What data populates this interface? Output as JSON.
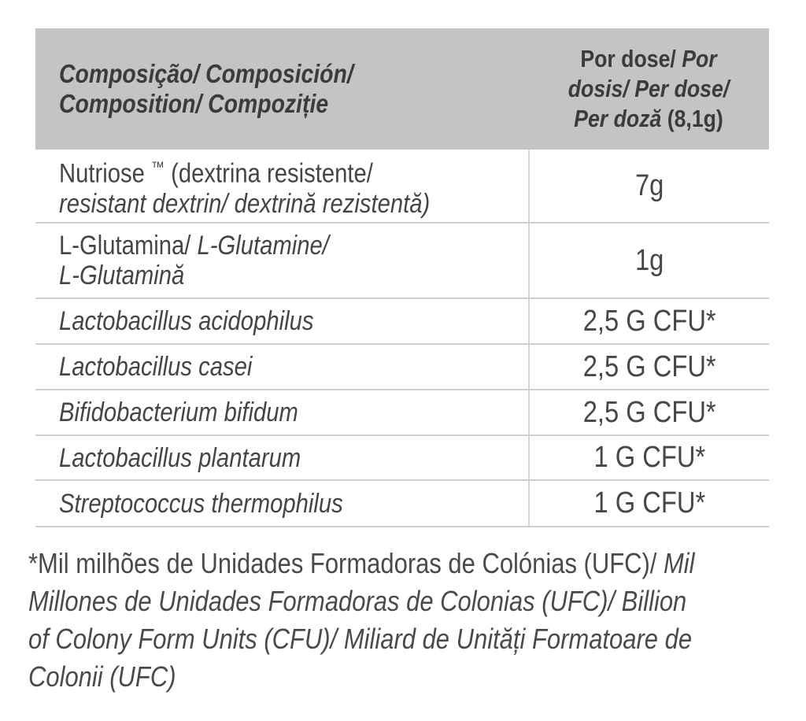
{
  "colors": {
    "page_bg": "#ffffff",
    "header_bg": "#c4c4c4",
    "header_text": "#3b3b3b",
    "body_text": "#454545",
    "row_separator": "#cfcfcf",
    "column_divider": "#d4d4d4"
  },
  "table": {
    "header": {
      "composition_lines": [
        [
          {
            "t": "Composição/ Composición/",
            "i": true
          }
        ],
        [
          {
            "t": "Composition/ Compoziție",
            "i": true
          }
        ]
      ],
      "per_dose_lines": [
        [
          {
            "t": "Por dose/ ",
            "i": false
          },
          {
            "t": "Por",
            "i": true
          }
        ],
        [
          {
            "t": "dosis/ Per dose/",
            "i": true
          }
        ],
        [
          {
            "t": "Per doză",
            "i": true
          },
          {
            "t": " (8,1g)",
            "i": false
          }
        ]
      ]
    },
    "rows": [
      {
        "name_lines": [
          [
            {
              "t": "Nutriose ",
              "i": false
            },
            {
              "t": "™",
              "i": false,
              "sup": true
            },
            {
              "t": " (dextrina resistente/",
              "i": false
            }
          ],
          [
            {
              "t": "resistant dextrin/ dextrină rezistentă)",
              "i": true
            }
          ]
        ],
        "value": "7g"
      },
      {
        "name_lines": [
          [
            {
              "t": "L-Glutamina/ ",
              "i": false
            },
            {
              "t": "L-Glutamine/",
              "i": true
            }
          ],
          [
            {
              "t": "L-Glutamină",
              "i": true
            }
          ]
        ],
        "value": "1g"
      },
      {
        "name_lines": [
          [
            {
              "t": "Lactobacillus acidophilus",
              "i": true
            }
          ]
        ],
        "value": "2,5 G CFU*"
      },
      {
        "name_lines": [
          [
            {
              "t": "Lactobacillus casei",
              "i": true
            }
          ]
        ],
        "value": "2,5 G CFU*"
      },
      {
        "name_lines": [
          [
            {
              "t": "Bifidobacterium bifidum",
              "i": true
            }
          ]
        ],
        "value": "2,5 G CFU*"
      },
      {
        "name_lines": [
          [
            {
              "t": "Lactobacillus plantarum",
              "i": true
            }
          ]
        ],
        "value": "1 G CFU*"
      },
      {
        "name_lines": [
          [
            {
              "t": "Streptococcus thermophilus",
              "i": true
            }
          ]
        ],
        "value": "1 G CFU*"
      }
    ]
  },
  "footnote": {
    "lines": [
      [
        {
          "t": "*Mil milhões de Unidades Formadoras de Colónias (UFC)/ ",
          "i": false
        },
        {
          "t": "Mil",
          "i": true
        }
      ],
      [
        {
          "t": "Millones de Unidades Formadoras de Colonias (UFC)/ Billion",
          "i": true
        }
      ],
      [
        {
          "t": "of Colony Form Units (CFU)/ Miliard de Unități Formatoare de",
          "i": true
        }
      ],
      [
        {
          "t": "Colonii (UFC)",
          "i": true
        }
      ]
    ]
  }
}
